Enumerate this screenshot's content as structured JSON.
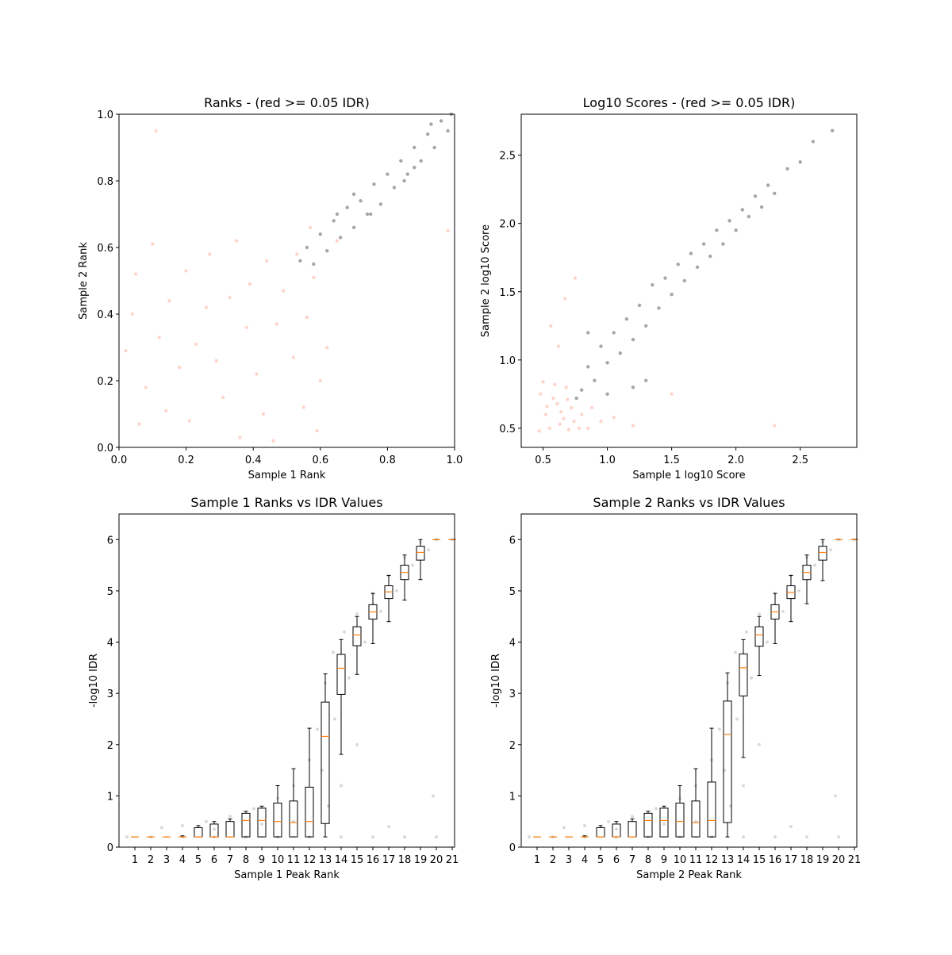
{
  "chart_data": [
    {
      "type": "scatter",
      "title": "Ranks - (red >= 0.05 IDR)",
      "xlabel": "Sample 1 Rank",
      "ylabel": "Sample 2 Rank",
      "xlim": [
        0,
        1
      ],
      "ylim": [
        0,
        1
      ],
      "xticks": [
        {
          "value": 0,
          "label": "0.0"
        },
        0.2,
        0.4,
        0.6,
        0.8,
        {
          "value": 1,
          "label": "1.0"
        }
      ],
      "yticks": [
        {
          "value": 0,
          "label": "0.0"
        },
        0.2,
        0.4,
        0.6,
        0.8,
        {
          "value": 1,
          "label": "1.0"
        }
      ],
      "alpha": 0.35,
      "series": [
        {
          "color": "#fb8a6c",
          "x": [
            0.05,
            0.12,
            0.21,
            0.33,
            0.41,
            0.55,
            0.08,
            0.27,
            0.47,
            0.58,
            0.15,
            0.36,
            0.02,
            0.52,
            0.23,
            0.44,
            0.31,
            0.59,
            0.1,
            0.18,
            0.49,
            0.38,
            0.06,
            0.26,
            0.56,
            0.14,
            0.43,
            0.29,
            0.53,
            0.35,
            0.62,
            0.04,
            0.2,
            0.46,
            0.39,
            0.6,
            0.65,
            0.57,
            0.11,
            0.98
          ],
          "y": [
            0.52,
            0.33,
            0.08,
            0.45,
            0.22,
            0.12,
            0.18,
            0.58,
            0.37,
            0.51,
            0.44,
            0.03,
            0.29,
            0.27,
            0.31,
            0.56,
            0.15,
            0.05,
            0.61,
            0.24,
            0.47,
            0.36,
            0.07,
            0.42,
            0.39,
            0.11,
            0.1,
            0.26,
            0.58,
            0.62,
            0.3,
            0.4,
            0.53,
            0.02,
            0.49,
            0.2,
            0.62,
            0.66,
            0.95,
            0.65
          ]
        },
        {
          "color": "#000000",
          "x": [
            0.54,
            0.56,
            0.58,
            0.6,
            0.62,
            0.64,
            0.66,
            0.68,
            0.7,
            0.72,
            0.74,
            0.76,
            0.78,
            0.8,
            0.82,
            0.84,
            0.86,
            0.88,
            0.9,
            0.92,
            0.94,
            0.96,
            0.98,
            0.99,
            0.7,
            0.75,
            0.85,
            0.88,
            0.65,
            0.93
          ],
          "y": [
            0.56,
            0.6,
            0.55,
            0.64,
            0.59,
            0.68,
            0.63,
            0.72,
            0.66,
            0.74,
            0.7,
            0.79,
            0.73,
            0.82,
            0.78,
            0.86,
            0.82,
            0.9,
            0.86,
            0.94,
            0.9,
            0.98,
            0.95,
            1.0,
            0.76,
            0.7,
            0.8,
            0.84,
            0.7,
            0.97
          ]
        }
      ]
    },
    {
      "type": "scatter",
      "title": "Log10 Scores - (red >= 0.05 IDR)",
      "xlabel": "Sample 1 log10 Score",
      "ylabel": "Sample 2 log10 Score",
      "xlim": [
        0.33,
        2.94
      ],
      "ylim": [
        0.36,
        2.8
      ],
      "xticks": [
        0.5,
        {
          "value": 1,
          "label": "1.0"
        },
        1.5,
        {
          "value": 2,
          "label": "2.0"
        },
        2.5
      ],
      "yticks": [
        0.5,
        {
          "value": 1,
          "label": "1.0"
        },
        1.5,
        {
          "value": 2,
          "label": "2.0"
        },
        2.5
      ],
      "alpha": 0.35,
      "series": [
        {
          "color": "#fb8a6c",
          "x": [
            0.47,
            0.52,
            0.58,
            0.63,
            0.68,
            0.72,
            0.5,
            0.55,
            0.61,
            0.66,
            0.7,
            0.48,
            0.53,
            0.59,
            0.64,
            0.69,
            0.74,
            0.8,
            0.85,
            0.88,
            0.95,
            1.05,
            1.2,
            0.62,
            0.56,
            0.78,
            1.5,
            2.3,
            0.75,
            0.67
          ],
          "y": [
            0.48,
            0.6,
            0.72,
            0.53,
            0.8,
            0.65,
            0.84,
            0.5,
            0.68,
            0.57,
            0.49,
            0.75,
            0.66,
            0.82,
            0.62,
            0.71,
            0.55,
            0.6,
            0.5,
            0.65,
            0.55,
            0.58,
            0.52,
            1.1,
            1.25,
            0.5,
            0.75,
            0.52,
            1.6,
            1.45
          ]
        },
        {
          "color": "#000000",
          "x": [
            0.76,
            0.8,
            0.85,
            0.9,
            0.95,
            1.0,
            1.05,
            1.1,
            1.15,
            1.2,
            1.25,
            1.3,
            1.35,
            1.4,
            1.45,
            1.5,
            1.55,
            1.6,
            1.65,
            1.7,
            1.75,
            1.8,
            1.85,
            1.9,
            1.95,
            2.0,
            2.05,
            2.1,
            2.15,
            2.2,
            2.25,
            2.3,
            2.4,
            2.5,
            2.6,
            2.75,
            1.0,
            1.3,
            0.85,
            1.2
          ],
          "y": [
            0.72,
            0.78,
            0.95,
            0.85,
            1.1,
            0.98,
            1.2,
            1.05,
            1.3,
            1.15,
            1.4,
            1.25,
            1.55,
            1.38,
            1.6,
            1.48,
            1.7,
            1.58,
            1.78,
            1.68,
            1.85,
            1.76,
            1.95,
            1.85,
            2.02,
            1.95,
            2.1,
            2.05,
            2.2,
            2.12,
            2.28,
            2.22,
            2.4,
            2.45,
            2.6,
            2.68,
            0.75,
            0.85,
            1.2,
            0.8
          ]
        }
      ]
    },
    {
      "type": "box",
      "title": "Sample 1 Ranks vs IDR Values",
      "xlabel": "Sample 1 Peak Rank",
      "ylabel": "-log10 IDR",
      "xlim": [
        0,
        21.15
      ],
      "ylim": [
        0,
        6.5
      ],
      "xticks": [
        1,
        2,
        3,
        4,
        5,
        6,
        7,
        8,
        9,
        10,
        11,
        12,
        13,
        14,
        15,
        16,
        17,
        18,
        19,
        20,
        21
      ],
      "yticks": [
        0,
        1,
        2,
        3,
        4,
        5,
        6
      ],
      "median_color": "#ff7f0e",
      "points": {
        "color": "#000000",
        "alpha": 0.15,
        "x": [
          0.5,
          2,
          4,
          6,
          8,
          10,
          12,
          14,
          16,
          18,
          20,
          2.7,
          4,
          5.5,
          7,
          8.5,
          10,
          11,
          12,
          12.5,
          13,
          13.5,
          14.2,
          15,
          16,
          17,
          18,
          19,
          20,
          21,
          6,
          9,
          11,
          12.8,
          13.6,
          14.5,
          15.5,
          16.5,
          17.5,
          18.5,
          19.5,
          14,
          15,
          19.8,
          17,
          13.2
        ],
        "y": [
          0.2,
          0.2,
          0.2,
          0.2,
          0.2,
          0.2,
          0.2,
          0.2,
          0.2,
          0.2,
          0.2,
          0.38,
          0.42,
          0.5,
          0.6,
          0.75,
          0.95,
          1.2,
          1.7,
          2.3,
          3.2,
          3.8,
          4.2,
          4.55,
          4.95,
          5.3,
          5.65,
          5.95,
          6.0,
          6.0,
          0.35,
          0.45,
          0.5,
          1.5,
          2.5,
          3.3,
          4.0,
          4.6,
          5.0,
          5.5,
          5.8,
          1.2,
          2.0,
          1.0,
          0.4,
          0.8
        ]
      },
      "boxes": {
        "positions": [
          1,
          2,
          3,
          4,
          5,
          6,
          7,
          8,
          9,
          10,
          11,
          12,
          13,
          14,
          15,
          16,
          17,
          18,
          19,
          20,
          21
        ],
        "q1": [
          0.2,
          0.2,
          0.2,
          0.2,
          0.2,
          0.2,
          0.2,
          0.2,
          0.2,
          0.2,
          0.2,
          0.2,
          0.46,
          2.98,
          3.93,
          4.45,
          4.85,
          5.22,
          5.6,
          6.0,
          6.0
        ],
        "median": [
          0.2,
          0.2,
          0.2,
          0.2,
          0.2,
          0.2,
          0.2,
          0.52,
          0.52,
          0.5,
          0.48,
          0.5,
          2.16,
          3.49,
          4.14,
          4.59,
          4.98,
          5.36,
          5.75,
          6.0,
          6.0
        ],
        "q3": [
          0.2,
          0.2,
          0.2,
          0.2,
          0.38,
          0.45,
          0.5,
          0.66,
          0.76,
          0.86,
          0.9,
          1.17,
          2.83,
          3.76,
          4.3,
          4.73,
          5.1,
          5.5,
          5.87,
          6.0,
          6.0
        ],
        "whisker_low": [
          0.2,
          0.2,
          0.2,
          0.2,
          0.2,
          0.2,
          0.2,
          0.2,
          0.2,
          0.2,
          0.2,
          0.2,
          0.2,
          1.81,
          3.37,
          3.97,
          4.4,
          4.82,
          5.22,
          6.0,
          6.0
        ],
        "whisker_high": [
          0.2,
          0.2,
          0.2,
          0.22,
          0.42,
          0.5,
          0.55,
          0.7,
          0.8,
          1.2,
          1.53,
          2.32,
          3.38,
          4.05,
          4.5,
          4.95,
          5.3,
          5.7,
          6.0,
          6.0,
          6.0
        ]
      }
    },
    {
      "type": "box",
      "title": "Sample 2 Ranks vs IDR Values",
      "xlabel": "Sample 2 Peak Rank",
      "ylabel": "-log10 IDR",
      "xlim": [
        0,
        21.15
      ],
      "ylim": [
        0,
        6.5
      ],
      "xticks": [
        1,
        2,
        3,
        4,
        5,
        6,
        7,
        8,
        9,
        10,
        11,
        12,
        13,
        14,
        15,
        16,
        17,
        18,
        19,
        20,
        21
      ],
      "yticks": [
        0,
        1,
        2,
        3,
        4,
        5,
        6
      ],
      "median_color": "#ff7f0e",
      "points": {
        "color": "#000000",
        "alpha": 0.15,
        "x": [
          0.5,
          2,
          4,
          6,
          8,
          10,
          12,
          14,
          16,
          18,
          20,
          2.7,
          4,
          5.5,
          7,
          8.5,
          10,
          11,
          12,
          12.5,
          13,
          13.5,
          14.2,
          15,
          16,
          17,
          18,
          19,
          20,
          21,
          6,
          9,
          11,
          12.8,
          13.6,
          14.5,
          15.5,
          16.5,
          17.5,
          18.5,
          19.5,
          14,
          15,
          19.8,
          17,
          13.2
        ],
        "y": [
          0.2,
          0.2,
          0.2,
          0.2,
          0.2,
          0.2,
          0.2,
          0.2,
          0.2,
          0.2,
          0.2,
          0.38,
          0.42,
          0.5,
          0.6,
          0.75,
          0.95,
          1.2,
          1.7,
          2.3,
          3.2,
          3.8,
          4.2,
          4.55,
          4.95,
          5.3,
          5.65,
          5.95,
          6.0,
          6.0,
          0.35,
          0.45,
          0.5,
          1.5,
          2.5,
          3.3,
          4.0,
          4.6,
          5.0,
          5.5,
          5.8,
          1.2,
          2.0,
          1.0,
          0.4,
          0.8
        ]
      },
      "boxes": {
        "positions": [
          1,
          2,
          3,
          4,
          5,
          6,
          7,
          8,
          9,
          10,
          11,
          12,
          13,
          14,
          15,
          16,
          17,
          18,
          19,
          20,
          21
        ],
        "q1": [
          0.2,
          0.2,
          0.2,
          0.2,
          0.2,
          0.2,
          0.2,
          0.2,
          0.2,
          0.2,
          0.2,
          0.2,
          0.48,
          2.95,
          3.92,
          4.45,
          4.85,
          5.22,
          5.6,
          6.0,
          6.0
        ],
        "median": [
          0.2,
          0.2,
          0.2,
          0.2,
          0.2,
          0.2,
          0.2,
          0.52,
          0.52,
          0.5,
          0.48,
          0.52,
          2.2,
          3.5,
          4.14,
          4.59,
          4.97,
          5.36,
          5.75,
          6.0,
          6.0
        ],
        "q3": [
          0.2,
          0.2,
          0.2,
          0.2,
          0.38,
          0.45,
          0.5,
          0.66,
          0.76,
          0.86,
          0.9,
          1.27,
          2.85,
          3.77,
          4.3,
          4.73,
          5.1,
          5.5,
          5.87,
          6.0,
          6.0
        ],
        "whisker_low": [
          0.2,
          0.2,
          0.2,
          0.2,
          0.2,
          0.2,
          0.2,
          0.2,
          0.2,
          0.2,
          0.2,
          0.2,
          0.2,
          1.75,
          3.35,
          3.97,
          4.4,
          4.75,
          5.2,
          6.0,
          6.0
        ],
        "whisker_high": [
          0.2,
          0.2,
          0.2,
          0.22,
          0.42,
          0.5,
          0.55,
          0.7,
          0.8,
          1.2,
          1.53,
          2.32,
          3.4,
          4.05,
          4.5,
          4.95,
          5.3,
          5.7,
          6.0,
          6.0,
          6.0
        ]
      }
    }
  ]
}
